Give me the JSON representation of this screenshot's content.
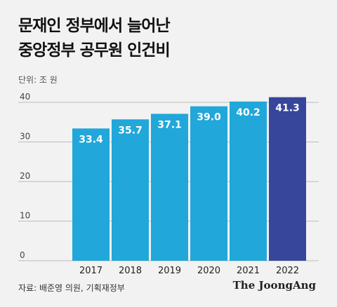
{
  "header": {
    "title_line1": "문재인 정부에서 늘어난",
    "title_line2": "중앙정부 공무원 인건비",
    "unit": "단위: 조 원"
  },
  "footer": {
    "source": "자료: 배준영 의원, 기획재정부",
    "brand": "The JoongAng"
  },
  "colors": {
    "bar": "#21A7D9",
    "highlight": "#37469A",
    "grid": "#bcbcbc",
    "axis_text": "#444444",
    "label_text": "#ffffff"
  },
  "chart_data": {
    "type": "bar",
    "categories": [
      "2017",
      "2018",
      "2019",
      "2020",
      "2021",
      "2022"
    ],
    "values": [
      33.4,
      35.7,
      37.1,
      39.0,
      40.2,
      41.3
    ],
    "value_labels": [
      "33.4",
      "35.7",
      "37.1",
      "39.0",
      "40.2",
      "41.3"
    ],
    "highlight_index": 5,
    "yticks": [
      "0",
      "10",
      "20",
      "30",
      "40"
    ],
    "ylim": [
      0,
      40
    ],
    "grid": true,
    "legend": "none"
  }
}
